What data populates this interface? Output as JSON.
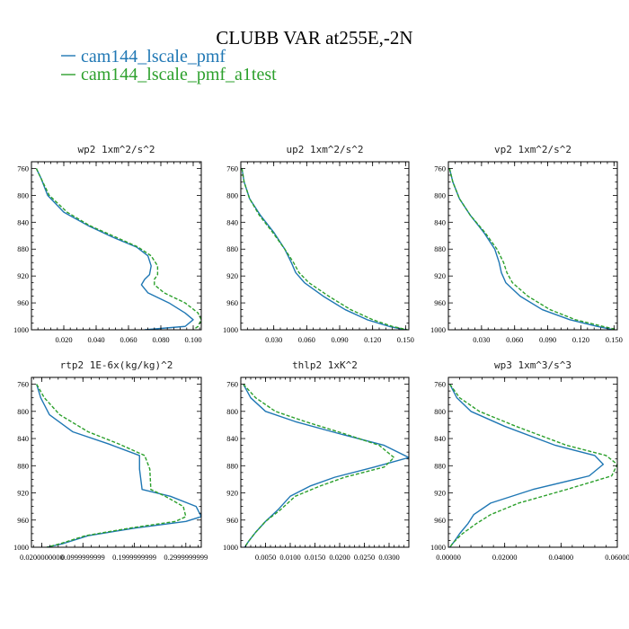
{
  "title": "CLUBB VAR at255E,-2N",
  "legend": [
    {
      "label": "cam144_lscale_pmf",
      "color": "#1f77b4",
      "dash": "solid"
    },
    {
      "label": "cam144_lscale_pmf_a1test",
      "color": "#2ca02c",
      "dash": "dashed"
    }
  ],
  "chart_data": [
    {
      "type": "line",
      "title": "wp2   1xm^2/s^2",
      "xlim": [
        0.0,
        0.105
      ],
      "ylim": [
        1000,
        750
      ],
      "y_inverted": true,
      "xticks": [
        0.02,
        0.04,
        0.06,
        0.08,
        0.1
      ],
      "xtick_labels": [
        "0.020",
        "0.040",
        "0.060",
        "0.080",
        "0.100"
      ],
      "yticks": [
        760,
        800,
        840,
        880,
        920,
        960,
        1000
      ],
      "ytick_labels": [
        "760",
        "800",
        "840",
        "880",
        "920",
        "960",
        "1000"
      ],
      "series": [
        {
          "color": "#1f77b4",
          "dash": "solid",
          "x": [
            0.003,
            0.006,
            0.01,
            0.02,
            0.035,
            0.05,
            0.065,
            0.072,
            0.074,
            0.073,
            0.07,
            0.068,
            0.072,
            0.085,
            0.095,
            0.1,
            0.095,
            0.07
          ],
          "y": [
            760,
            775,
            800,
            825,
            845,
            862,
            877,
            890,
            905,
            918,
            925,
            933,
            945,
            960,
            975,
            985,
            995,
            1000
          ]
        },
        {
          "color": "#2ca02c",
          "dash": "dashed",
          "x": [
            0.003,
            0.006,
            0.011,
            0.022,
            0.036,
            0.052,
            0.066,
            0.074,
            0.078,
            0.078,
            0.076,
            0.076,
            0.082,
            0.095,
            0.103,
            0.105,
            0.103,
            0.1
          ],
          "y": [
            760,
            775,
            800,
            825,
            845,
            862,
            877,
            890,
            905,
            918,
            925,
            933,
            945,
            960,
            975,
            985,
            995,
            1000
          ]
        }
      ]
    },
    {
      "type": "line",
      "title": "up2   1xm^2/s^2",
      "xlim": [
        0.0,
        0.153
      ],
      "ylim": [
        1000,
        750
      ],
      "y_inverted": true,
      "xticks": [
        0.03,
        0.06,
        0.09,
        0.12,
        0.15
      ],
      "xtick_labels": [
        "0.030",
        "0.060",
        "0.090",
        "0.120",
        "0.150"
      ],
      "yticks": [
        760,
        800,
        840,
        880,
        920,
        960,
        1000
      ],
      "ytick_labels": [
        "760",
        "800",
        "840",
        "880",
        "920",
        "960",
        "1000"
      ],
      "series": [
        {
          "color": "#1f77b4",
          "dash": "solid",
          "x": [
            0.001,
            0.003,
            0.008,
            0.018,
            0.03,
            0.04,
            0.046,
            0.05,
            0.058,
            0.075,
            0.095,
            0.115,
            0.135,
            0.15
          ],
          "y": [
            760,
            780,
            805,
            830,
            855,
            880,
            900,
            915,
            930,
            950,
            970,
            985,
            995,
            1000
          ]
        },
        {
          "color": "#2ca02c",
          "dash": "dashed",
          "x": [
            0.001,
            0.003,
            0.008,
            0.017,
            0.029,
            0.04,
            0.048,
            0.053,
            0.062,
            0.08,
            0.1,
            0.12,
            0.138,
            0.152
          ],
          "y": [
            760,
            780,
            805,
            830,
            855,
            880,
            900,
            915,
            930,
            950,
            970,
            985,
            995,
            1000
          ]
        }
      ]
    },
    {
      "type": "line",
      "title": "vp2   1xm^2/s^2",
      "xlim": [
        0.0,
        0.153
      ],
      "ylim": [
        1000,
        750
      ],
      "y_inverted": true,
      "xticks": [
        0.03,
        0.06,
        0.09,
        0.12,
        0.15
      ],
      "xtick_labels": [
        "0.030",
        "0.060",
        "0.090",
        "0.120",
        "0.150"
      ],
      "yticks": [
        760,
        800,
        840,
        880,
        920,
        960,
        1000
      ],
      "ytick_labels": [
        "760",
        "800",
        "840",
        "880",
        "920",
        "960",
        "1000"
      ],
      "series": [
        {
          "color": "#1f77b4",
          "dash": "solid",
          "x": [
            0.001,
            0.004,
            0.01,
            0.02,
            0.032,
            0.042,
            0.046,
            0.048,
            0.052,
            0.065,
            0.085,
            0.11,
            0.135,
            0.15
          ],
          "y": [
            760,
            780,
            805,
            830,
            855,
            880,
            900,
            915,
            930,
            950,
            970,
            985,
            995,
            1000
          ]
        },
        {
          "color": "#2ca02c",
          "dash": "dashed",
          "x": [
            0.001,
            0.004,
            0.01,
            0.02,
            0.033,
            0.044,
            0.05,
            0.053,
            0.058,
            0.072,
            0.092,
            0.115,
            0.14,
            0.153
          ],
          "y": [
            760,
            780,
            805,
            830,
            855,
            880,
            900,
            915,
            930,
            950,
            970,
            985,
            995,
            1000
          ]
        }
      ]
    },
    {
      "type": "line",
      "title": "rtp2   1E-6x(kg/kg)^2",
      "xlim": [
        0.0,
        0.33
      ],
      "ylim": [
        1000,
        750
      ],
      "y_inverted": true,
      "xticks": [
        0.02,
        0.0999999999,
        0.1999999999,
        0.2999999999
      ],
      "xtick_labels": [
        "0.0200000000",
        "0.0999999999",
        "0.1999999999",
        "0.2999999999"
      ],
      "yticks": [
        760,
        800,
        840,
        880,
        920,
        960,
        1000
      ],
      "ytick_labels": [
        "760",
        "800",
        "840",
        "880",
        "920",
        "960",
        "1000"
      ],
      "series": [
        {
          "color": "#1f77b4",
          "dash": "solid",
          "x": [
            0.01,
            0.018,
            0.035,
            0.08,
            0.15,
            0.21,
            0.21,
            0.215,
            0.27,
            0.32,
            0.33,
            0.3,
            0.2,
            0.11,
            0.06,
            0.03
          ],
          "y": [
            760,
            780,
            805,
            830,
            848,
            865,
            885,
            915,
            925,
            940,
            955,
            962,
            972,
            983,
            995,
            1000
          ]
        },
        {
          "color": "#2ca02c",
          "dash": "dashed",
          "x": [
            0.01,
            0.025,
            0.055,
            0.11,
            0.17,
            0.22,
            0.23,
            0.232,
            0.26,
            0.295,
            0.3,
            0.28,
            0.19,
            0.105,
            0.055,
            0.03
          ],
          "y": [
            760,
            780,
            805,
            830,
            848,
            865,
            885,
            915,
            925,
            940,
            955,
            962,
            972,
            983,
            995,
            1000
          ]
        }
      ]
    },
    {
      "type": "line",
      "title": "thlp2   1xK^2",
      "xlim": [
        0.0,
        0.034
      ],
      "ylim": [
        1000,
        750
      ],
      "y_inverted": true,
      "xticks": [
        0.005,
        0.01,
        0.015,
        0.02,
        0.025,
        0.03
      ],
      "xtick_labels": [
        "0.0050",
        "0.0100",
        "0.0150",
        "0.0200",
        "0.0250",
        "0.0300"
      ],
      "yticks": [
        760,
        800,
        840,
        880,
        920,
        960,
        1000
      ],
      "ytick_labels": [
        "760",
        "800",
        "840",
        "880",
        "920",
        "960",
        "1000"
      ],
      "series": [
        {
          "color": "#1f77b4",
          "dash": "solid",
          "x": [
            0.0005,
            0.002,
            0.005,
            0.011,
            0.02,
            0.029,
            0.034,
            0.027,
            0.019,
            0.014,
            0.01,
            0.0075,
            0.005,
            0.003,
            0.0015,
            0.0008
          ],
          "y": [
            760,
            780,
            800,
            815,
            833,
            850,
            868,
            882,
            897,
            910,
            925,
            945,
            962,
            978,
            992,
            1000
          ]
        },
        {
          "color": "#2ca02c",
          "dash": "dashed",
          "x": [
            0.0005,
            0.003,
            0.007,
            0.013,
            0.021,
            0.028,
            0.031,
            0.029,
            0.021,
            0.016,
            0.011,
            0.008,
            0.005,
            0.003,
            0.0015,
            0.0008
          ],
          "y": [
            760,
            780,
            800,
            815,
            833,
            850,
            868,
            882,
            897,
            910,
            925,
            945,
            962,
            978,
            992,
            1000
          ]
        }
      ]
    },
    {
      "type": "line",
      "title": "wp3   1xm^3/s^3",
      "xlim": [
        0.0,
        0.06
      ],
      "ylim": [
        1000,
        750
      ],
      "y_inverted": true,
      "xticks": [
        0.0,
        0.02,
        0.04,
        0.06
      ],
      "xtick_labels": [
        "0.00000",
        "0.02000",
        "0.04000",
        "0.06000"
      ],
      "yticks": [
        760,
        800,
        840,
        880,
        920,
        960,
        1000
      ],
      "ytick_labels": [
        "760",
        "800",
        "840",
        "880",
        "920",
        "960",
        "1000"
      ],
      "series": [
        {
          "color": "#1f77b4",
          "dash": "solid",
          "x": [
            0.0005,
            0.003,
            0.008,
            0.02,
            0.038,
            0.052,
            0.055,
            0.05,
            0.03,
            0.015,
            0.009,
            0.007,
            0.004,
            0.002,
            0.0005
          ],
          "y": [
            760,
            780,
            800,
            822,
            850,
            865,
            878,
            895,
            915,
            935,
            952,
            965,
            980,
            992,
            1000
          ]
        },
        {
          "color": "#2ca02c",
          "dash": "dashed",
          "x": [
            0.0005,
            0.004,
            0.011,
            0.024,
            0.042,
            0.056,
            0.06,
            0.058,
            0.042,
            0.025,
            0.015,
            0.01,
            0.005,
            0.002,
            0.0005
          ],
          "y": [
            760,
            780,
            800,
            822,
            850,
            865,
            878,
            895,
            915,
            935,
            952,
            965,
            980,
            992,
            1000
          ]
        }
      ]
    }
  ]
}
